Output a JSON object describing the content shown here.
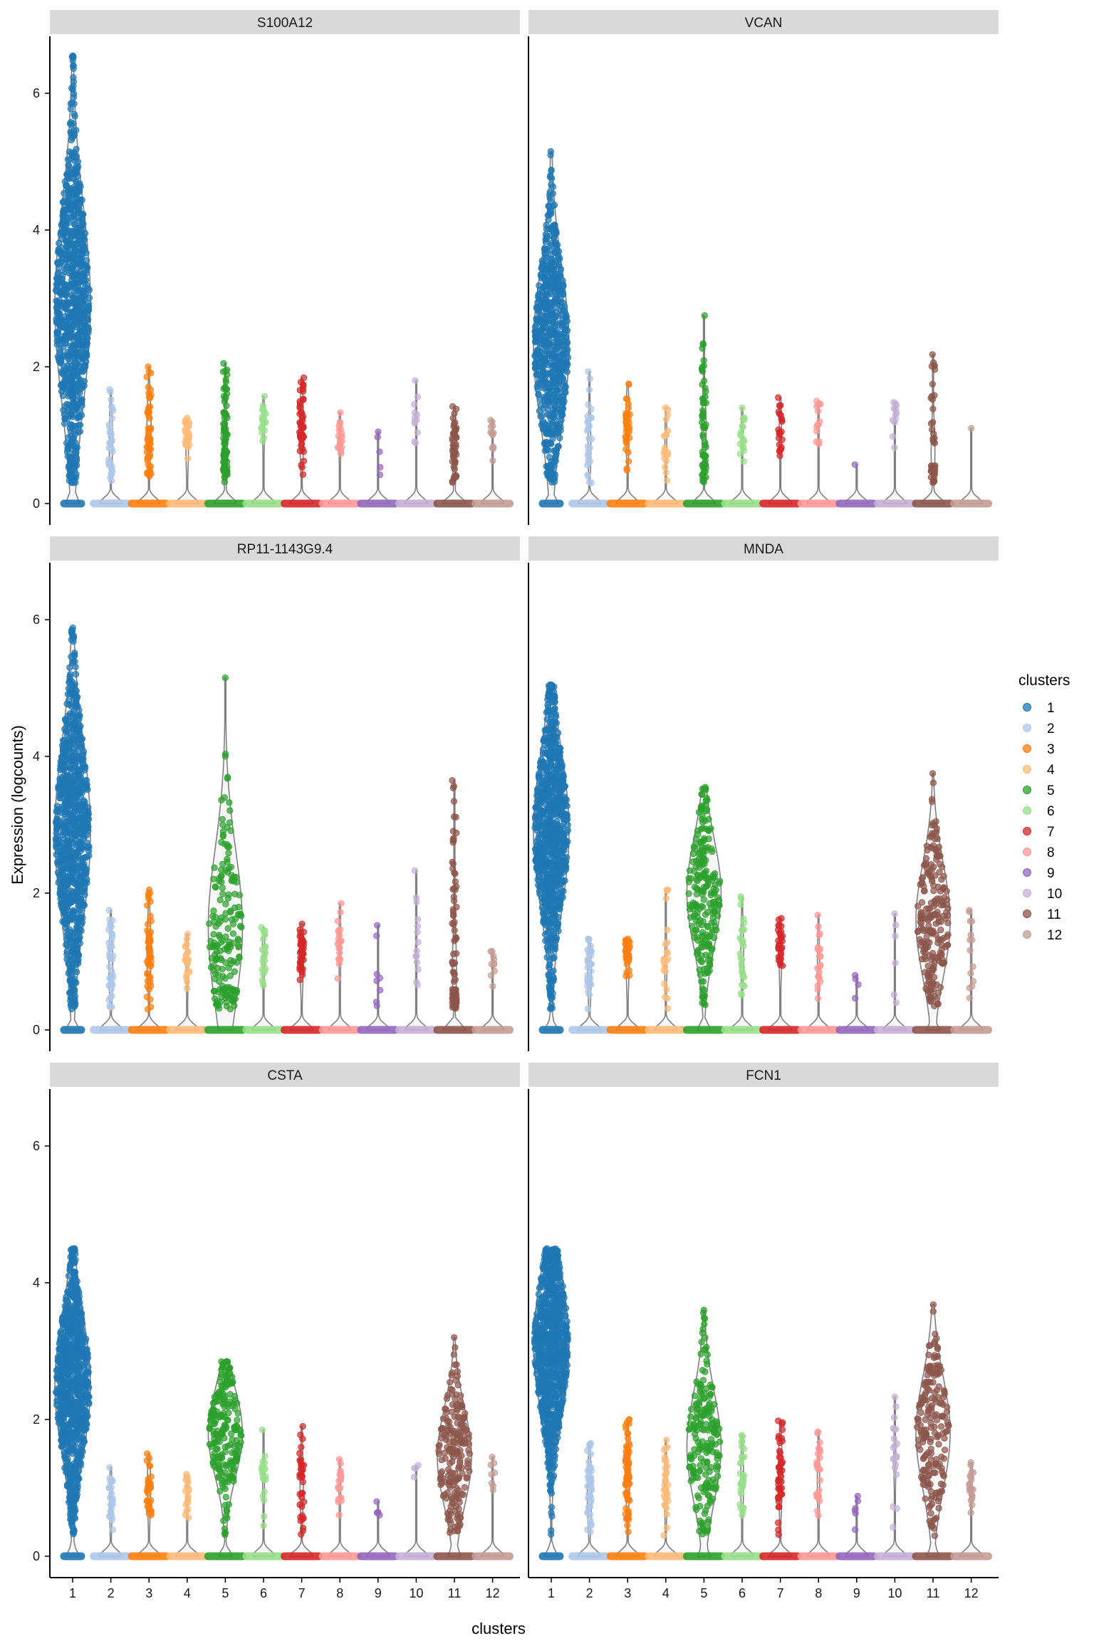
{
  "chart_data": {
    "type": "violin",
    "xlabel": "clusters",
    "ylabel": "Expression (logcounts)",
    "ylim": [
      0,
      6.8
    ],
    "yticks": [
      0,
      2,
      4,
      6
    ],
    "categories": [
      "1",
      "2",
      "3",
      "4",
      "5",
      "6",
      "7",
      "8",
      "9",
      "10",
      "11",
      "12"
    ],
    "legend": {
      "title": "clusters",
      "position": "right",
      "entries": [
        {
          "label": "1",
          "color": "#1f77b4"
        },
        {
          "label": "2",
          "color": "#aec7e8"
        },
        {
          "label": "3",
          "color": "#ff7f0e"
        },
        {
          "label": "4",
          "color": "#ffbb78"
        },
        {
          "label": "5",
          "color": "#2ca02c"
        },
        {
          "label": "6",
          "color": "#98df8a"
        },
        {
          "label": "7",
          "color": "#d62728"
        },
        {
          "label": "8",
          "color": "#ff9896"
        },
        {
          "label": "9",
          "color": "#9467bd"
        },
        {
          "label": "10",
          "color": "#c5b0d5"
        },
        {
          "label": "11",
          "color": "#8c564b"
        },
        {
          "label": "12",
          "color": "#c49c94"
        }
      ]
    },
    "panels": [
      {
        "gene": "S100A12",
        "max": [
          6.55,
          1.67,
          2.0,
          1.25,
          2.05,
          1.57,
          1.84,
          1.33,
          1.05,
          1.8,
          1.42,
          1.22
        ],
        "median_nonzero": [
          2.9,
          0.9,
          1.1,
          0.95,
          0.8,
          1.15,
          1.1,
          0.95,
          0.7,
          1.25,
          0.8,
          0.95
        ],
        "n_nonzero": [
          900,
          35,
          55,
          30,
          90,
          20,
          45,
          18,
          5,
          12,
          45,
          12
        ]
      },
      {
        "gene": "VCAN",
        "max": [
          5.15,
          1.93,
          1.75,
          1.4,
          2.75,
          1.4,
          1.55,
          1.5,
          0.57,
          1.48,
          2.18,
          1.1
        ],
        "median_nonzero": [
          2.3,
          0.85,
          1.15,
          0.85,
          1.1,
          1.05,
          1.1,
          1.2,
          0.57,
          1.3,
          0.75,
          1.1
        ],
        "n_nonzero": [
          700,
          30,
          35,
          20,
          60,
          18,
          22,
          14,
          1,
          12,
          40,
          1
        ]
      },
      {
        "gene": "RP11-1143G9.4",
        "max": [
          5.88,
          1.75,
          2.05,
          1.4,
          5.15,
          1.5,
          1.55,
          1.85,
          1.53,
          2.33,
          3.65,
          1.15
        ],
        "median_nonzero": [
          2.9,
          0.9,
          1.15,
          1.0,
          1.5,
          1.1,
          1.1,
          1.2,
          0.9,
          1.25,
          0.9,
          1.0
        ],
        "n_nonzero": [
          900,
          40,
          50,
          25,
          180,
          25,
          40,
          20,
          8,
          14,
          80,
          10
        ]
      },
      {
        "gene": "MNDA",
        "max": [
          5.05,
          1.33,
          1.33,
          2.05,
          3.55,
          1.95,
          1.63,
          1.68,
          0.8,
          1.7,
          3.75,
          1.75
        ],
        "median_nonzero": [
          2.9,
          0.85,
          1.1,
          0.95,
          2.0,
          1.15,
          1.2,
          1.0,
          0.7,
          0.9,
          1.6,
          1.05
        ],
        "n_nonzero": [
          900,
          35,
          35,
          22,
          220,
          30,
          30,
          22,
          4,
          6,
          220,
          14
        ]
      },
      {
        "gene": "CSTA",
        "max": [
          4.5,
          1.3,
          1.5,
          1.2,
          2.85,
          1.85,
          1.9,
          1.42,
          0.8,
          1.33,
          3.2,
          1.45
        ],
        "median_nonzero": [
          2.5,
          0.8,
          1.0,
          0.9,
          1.8,
          1.15,
          1.05,
          1.0,
          0.7,
          1.2,
          1.45,
          1.0
        ],
        "n_nonzero": [
          900,
          25,
          35,
          20,
          220,
          20,
          35,
          18,
          5,
          4,
          200,
          8
        ]
      },
      {
        "gene": "FCN1",
        "max": [
          4.5,
          1.65,
          2.0,
          1.7,
          3.6,
          1.77,
          1.98,
          1.82,
          0.88,
          2.33,
          3.68,
          1.37
        ],
        "median_nonzero": [
          3.1,
          0.9,
          1.2,
          1.0,
          1.6,
          1.1,
          1.2,
          1.1,
          0.7,
          1.4,
          1.8,
          1.1
        ],
        "n_nonzero": [
          900,
          45,
          70,
          30,
          200,
          30,
          45,
          25,
          6,
          20,
          200,
          20
        ]
      }
    ]
  }
}
